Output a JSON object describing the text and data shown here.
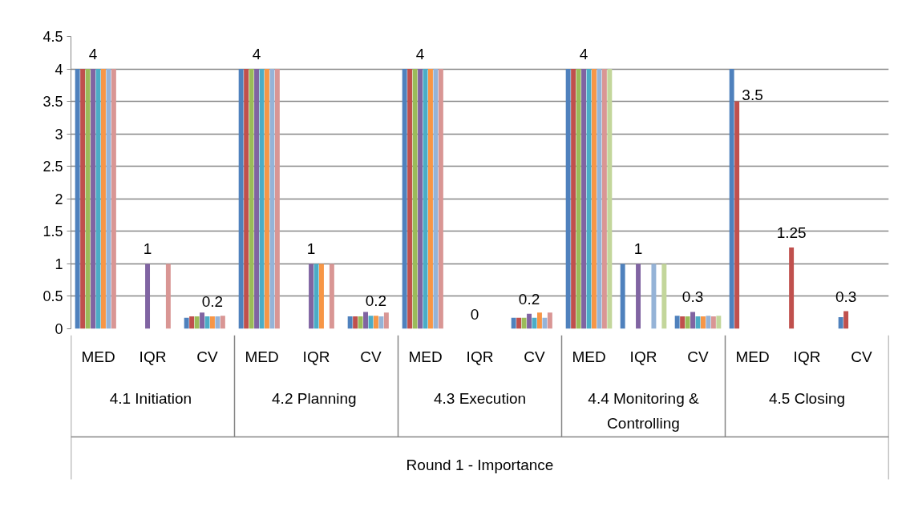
{
  "chart_data": {
    "type": "bar",
    "categories": [
      "MED",
      "IQR",
      "CV",
      "MED",
      "IQR",
      "CV",
      "MED",
      "IQR",
      "CV",
      "MED",
      "IQR",
      "CV",
      "MED",
      "IQR",
      "CV"
    ],
    "series": [
      {
        "color": "#4f81bd",
        "values": [
          4,
          0,
          0.17,
          4,
          0,
          0.19,
          4,
          0,
          0.17,
          4,
          1,
          0.2,
          4,
          0,
          0.18
        ]
      },
      {
        "color": "#c0504d",
        "values": [
          4,
          0,
          0.19,
          4,
          0,
          0.19,
          4,
          0,
          0.17,
          4,
          0,
          0.19,
          3.5,
          1.25,
          0.27
        ],
        "value_labels": [
          null,
          null,
          null,
          null,
          null,
          null,
          null,
          null,
          null,
          null,
          null,
          null,
          "3.5",
          "1.25",
          "0.3"
        ]
      },
      {
        "color": "#9bbb59",
        "values": [
          4,
          0,
          0.19,
          4,
          0,
          0.19,
          4,
          0,
          0.17,
          4,
          0,
          0.19,
          null,
          null,
          null
        ]
      },
      {
        "color": "#8064a2",
        "values": [
          4,
          1,
          0.25,
          4,
          1,
          0.26,
          4,
          0,
          0.23,
          4,
          1,
          0.26,
          null,
          null,
          null
        ],
        "value_labels": [
          "4",
          "1",
          null,
          "4",
          "1",
          null,
          "4",
          "0",
          "0.2",
          "4",
          "1",
          "0.3",
          null,
          null,
          null
        ]
      },
      {
        "color": "#4bacc6",
        "values": [
          4,
          0,
          0.19,
          4,
          1,
          0.2,
          4,
          0,
          0.17,
          4,
          0,
          0.19,
          null,
          null,
          null
        ]
      },
      {
        "color": "#f79646",
        "values": [
          4,
          0,
          0.19,
          4,
          1,
          0.2,
          4,
          0,
          0.25,
          4,
          0,
          0.19,
          null,
          null,
          null
        ],
        "value_labels": [
          null,
          null,
          "0.2",
          null,
          null,
          "0.2",
          null,
          null,
          null,
          null,
          null,
          null,
          null,
          null,
          null
        ]
      },
      {
        "color": "#95b3d7",
        "values": [
          4,
          0,
          0.19,
          4,
          0,
          0.19,
          4,
          0,
          0.17,
          4,
          1,
          0.2,
          null,
          null,
          null
        ]
      },
      {
        "color": "#d99694",
        "values": [
          4,
          1,
          0.2,
          4,
          1,
          0.25,
          4,
          0,
          0.25,
          4,
          0,
          0.19,
          null,
          null,
          null
        ]
      },
      {
        "color": "#c3d69b",
        "values": [
          null,
          null,
          null,
          null,
          null,
          null,
          null,
          null,
          null,
          4,
          1,
          0.2,
          null,
          null,
          null
        ]
      }
    ],
    "ylim": [
      0,
      4.5
    ],
    "yticks": [
      0,
      0.5,
      1,
      1.5,
      2,
      2.5,
      3,
      3.5,
      4,
      4.5
    ],
    "grid": "y",
    "annotations": [
      "4.1  Initiation",
      "4.2  Planning",
      "4.3 Execution",
      "4.4 Monitoring & Controlling",
      "4.5 Closing",
      "Round 1 - Importance"
    ]
  }
}
